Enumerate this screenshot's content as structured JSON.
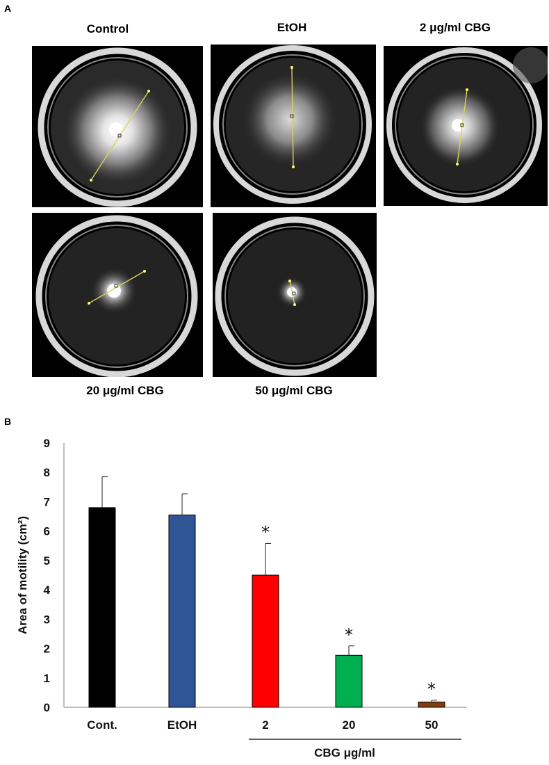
{
  "panel_a": {
    "letter": "A",
    "plates": [
      {
        "label": "Control",
        "spread": 1.0,
        "measure_line": "diagonal"
      },
      {
        "label": "EtOH",
        "spread": 0.85,
        "measure_line": "vertical"
      },
      {
        "label": "2 μg/ml CBG",
        "spread": 0.6,
        "measure_line": "steep"
      },
      {
        "label": "20 μg/ml CBG",
        "spread": 0.3,
        "measure_line": "shallow"
      },
      {
        "label": "50 μg/ml CBG",
        "spread": 0.15,
        "measure_line": "short"
      }
    ]
  },
  "panel_b": {
    "letter": "B"
  },
  "chart_data": {
    "type": "bar",
    "categories": [
      "Cont.",
      "EtOH",
      "2",
      "20",
      "50"
    ],
    "values": [
      6.8,
      6.55,
      4.5,
      1.77,
      0.18
    ],
    "errors": [
      1.05,
      0.72,
      1.08,
      0.32,
      0.06
    ],
    "significance": [
      "",
      "",
      "*",
      "*",
      "*"
    ],
    "colors": [
      "#000000",
      "#2f5597",
      "#ff0000",
      "#00b050",
      "#843c0c"
    ],
    "ylabel": "Area of motility (cm²)",
    "xlabel": "CBG μg/ml",
    "ylim": [
      0,
      9
    ],
    "yticks": [
      0,
      1,
      2,
      3,
      4,
      5,
      6,
      7,
      8,
      9
    ],
    "group_bracket_categories": [
      "2",
      "20",
      "50"
    ]
  }
}
